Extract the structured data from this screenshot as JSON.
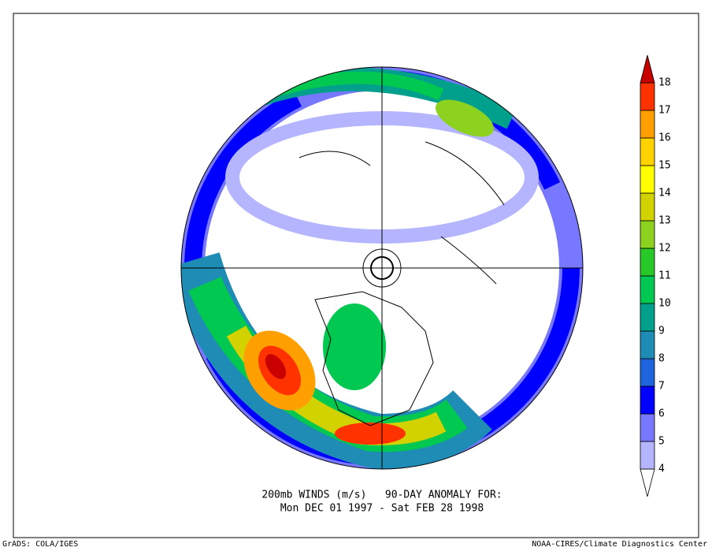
{
  "title_lines": [
    "200mb WINDS (m/s)   90-DAY ANOMALY FOR:",
    "Mon DEC 01 1997 - Sat FEB 28 1998"
  ],
  "footer_left": "GrADS: COLA/IGES",
  "footer_right": "NOAA-CIRES/Climate Diagnostics Center",
  "colorbar": {
    "levels": [
      4,
      5,
      6,
      7,
      8,
      9,
      10,
      11,
      12,
      13,
      14,
      15,
      16,
      17,
      18
    ],
    "colors": [
      "#ffffff",
      "#b4b4ff",
      "#7878ff",
      "#0000ff",
      "#1e64dc",
      "#1e8cb4",
      "#00a08c",
      "#00c850",
      "#28c828",
      "#8cd21e",
      "#d2d200",
      "#ffff00",
      "#ffd200",
      "#ffa000",
      "#ff3200",
      "#c80000"
    ]
  }
}
